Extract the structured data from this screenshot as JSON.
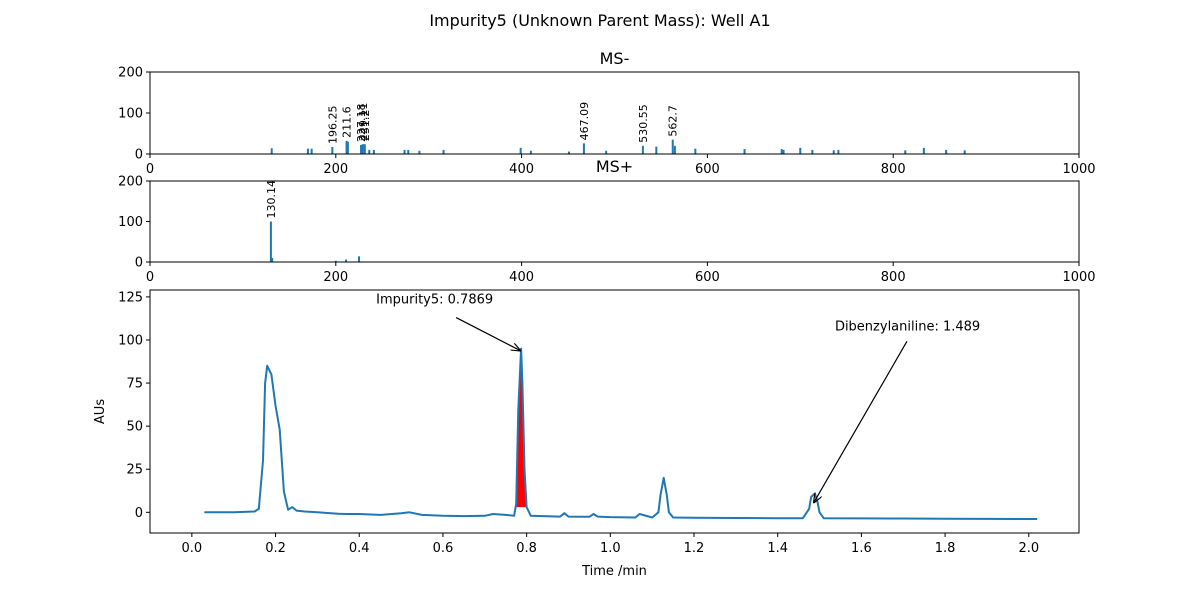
{
  "figure": {
    "title": "Impurity5 (Unknown Parent Mass): Well A1"
  },
  "chart_data": [
    {
      "type": "bar",
      "title": "MS-",
      "xlabel": "",
      "ylabel": "",
      "xlim": [
        0,
        1000
      ],
      "ylim": [
        0,
        200
      ],
      "xticks": [
        0,
        200,
        400,
        600,
        800,
        1000
      ],
      "yticks": [
        0,
        100,
        200
      ],
      "color": "#1f77b4",
      "peaks": [
        {
          "x": 131,
          "y": 14
        },
        {
          "x": 170,
          "y": 13
        },
        {
          "x": 174,
          "y": 13
        },
        {
          "x": 196.25,
          "y": 17,
          "label": "196.25"
        },
        {
          "x": 211.6,
          "y": 32,
          "label": "211.6"
        },
        {
          "x": 213,
          "y": 30
        },
        {
          "x": 227.18,
          "y": 22,
          "label": "227.18"
        },
        {
          "x": 229.11,
          "y": 24,
          "label": "229.11"
        },
        {
          "x": 231.2,
          "y": 24,
          "label": "231.2"
        },
        {
          "x": 236,
          "y": 10
        },
        {
          "x": 241,
          "y": 10
        },
        {
          "x": 274,
          "y": 10
        },
        {
          "x": 278,
          "y": 10
        },
        {
          "x": 290,
          "y": 8
        },
        {
          "x": 316,
          "y": 10
        },
        {
          "x": 399,
          "y": 15
        },
        {
          "x": 410,
          "y": 8
        },
        {
          "x": 451,
          "y": 6
        },
        {
          "x": 467.09,
          "y": 26,
          "label": "467.09"
        },
        {
          "x": 491,
          "y": 8
        },
        {
          "x": 530.55,
          "y": 20,
          "label": "530.55"
        },
        {
          "x": 545,
          "y": 18
        },
        {
          "x": 562.7,
          "y": 35,
          "label": "562.7"
        },
        {
          "x": 565,
          "y": 20
        },
        {
          "x": 587,
          "y": 13
        },
        {
          "x": 640,
          "y": 12
        },
        {
          "x": 680,
          "y": 12
        },
        {
          "x": 682,
          "y": 10
        },
        {
          "x": 700,
          "y": 15
        },
        {
          "x": 713,
          "y": 10
        },
        {
          "x": 736,
          "y": 9
        },
        {
          "x": 741,
          "y": 10
        },
        {
          "x": 813,
          "y": 9
        },
        {
          "x": 833,
          "y": 15
        },
        {
          "x": 857,
          "y": 10
        },
        {
          "x": 877,
          "y": 9
        }
      ]
    },
    {
      "type": "bar",
      "title": "MS+",
      "xlabel": "",
      "ylabel": "",
      "xlim": [
        0,
        1000
      ],
      "ylim": [
        0,
        200
      ],
      "xticks": [
        0,
        200,
        400,
        600,
        800,
        1000
      ],
      "yticks": [
        0,
        100,
        200
      ],
      "color": "#1f77b4",
      "peaks": [
        {
          "x": 130.14,
          "y": 100,
          "label": "130.14"
        },
        {
          "x": 131.5,
          "y": 10
        },
        {
          "x": 200,
          "y": 3
        },
        {
          "x": 211,
          "y": 6
        },
        {
          "x": 225,
          "y": 14
        }
      ]
    },
    {
      "type": "line",
      "title": "",
      "xlabel": "Time /min",
      "ylabel": "AUs",
      "xlim": [
        -0.1,
        2.12
      ],
      "ylim": [
        -12,
        129
      ],
      "xticks": [
        0.0,
        0.2,
        0.4,
        0.6,
        0.8,
        1.0,
        1.2,
        1.4,
        1.6,
        1.8,
        2.0
      ],
      "xtick_labels": [
        "0.0",
        "0.2",
        "0.4",
        "0.6",
        "0.8",
        "1.0",
        "1.2",
        "1.4",
        "1.6",
        "1.8",
        "2.0"
      ],
      "yticks": [
        0,
        25,
        50,
        75,
        100,
        125
      ],
      "color": "#1f77b4",
      "fill_color": "#ff0000",
      "fill_range": [
        0.775,
        0.8
      ],
      "series": [
        {
          "x": [
            0.03,
            0.1,
            0.15,
            0.16,
            0.17,
            0.175,
            0.18,
            0.19,
            0.2,
            0.21,
            0.22,
            0.23,
            0.24,
            0.25,
            0.27,
            0.3,
            0.35,
            0.37,
            0.4,
            0.45,
            0.5,
            0.52,
            0.55,
            0.6,
            0.65,
            0.7,
            0.72,
            0.75,
            0.77,
            0.775,
            0.78,
            0.7869,
            0.79,
            0.795,
            0.8,
            0.81,
            0.85,
            0.88,
            0.89,
            0.9,
            0.95,
            0.96,
            0.97,
            1.0,
            1.06,
            1.07,
            1.1,
            1.115,
            1.12,
            1.1275,
            1.135,
            1.14,
            1.15,
            1.2,
            1.3,
            1.4,
            1.46,
            1.475,
            1.48,
            1.489,
            1.495,
            1.5,
            1.51,
            1.6,
            1.7,
            1.8,
            1.9,
            2.02
          ],
          "y": [
            0,
            0,
            0.5,
            2,
            30,
            75,
            85,
            80,
            62,
            48,
            12,
            1.5,
            3,
            1,
            0.5,
            0,
            -0.8,
            -1,
            -1,
            -1.5,
            -0.5,
            0,
            -1.5,
            -2,
            -2.2,
            -2,
            -1,
            -1.5,
            -2,
            5,
            60,
            95,
            75,
            25,
            3,
            -2,
            -2.3,
            -2.5,
            -0.5,
            -2.5,
            -2.6,
            -1,
            -2.5,
            -2.8,
            -3,
            -1,
            -3,
            0,
            10,
            20,
            10,
            0,
            -3,
            -3.2,
            -3.3,
            -3.4,
            -3.4,
            2,
            9,
            11,
            6,
            0,
            -3.4,
            -3.5,
            -3.6,
            -3.7,
            -3.8,
            -3.9
          ]
        }
      ],
      "annotations": [
        {
          "text": "Impurity5: 0.7869",
          "target_x": 0.7869,
          "target_y": 95
        },
        {
          "text": "Dibenzylaniline: 1.489",
          "target_x": 1.489,
          "target_y": 11
        }
      ]
    }
  ]
}
